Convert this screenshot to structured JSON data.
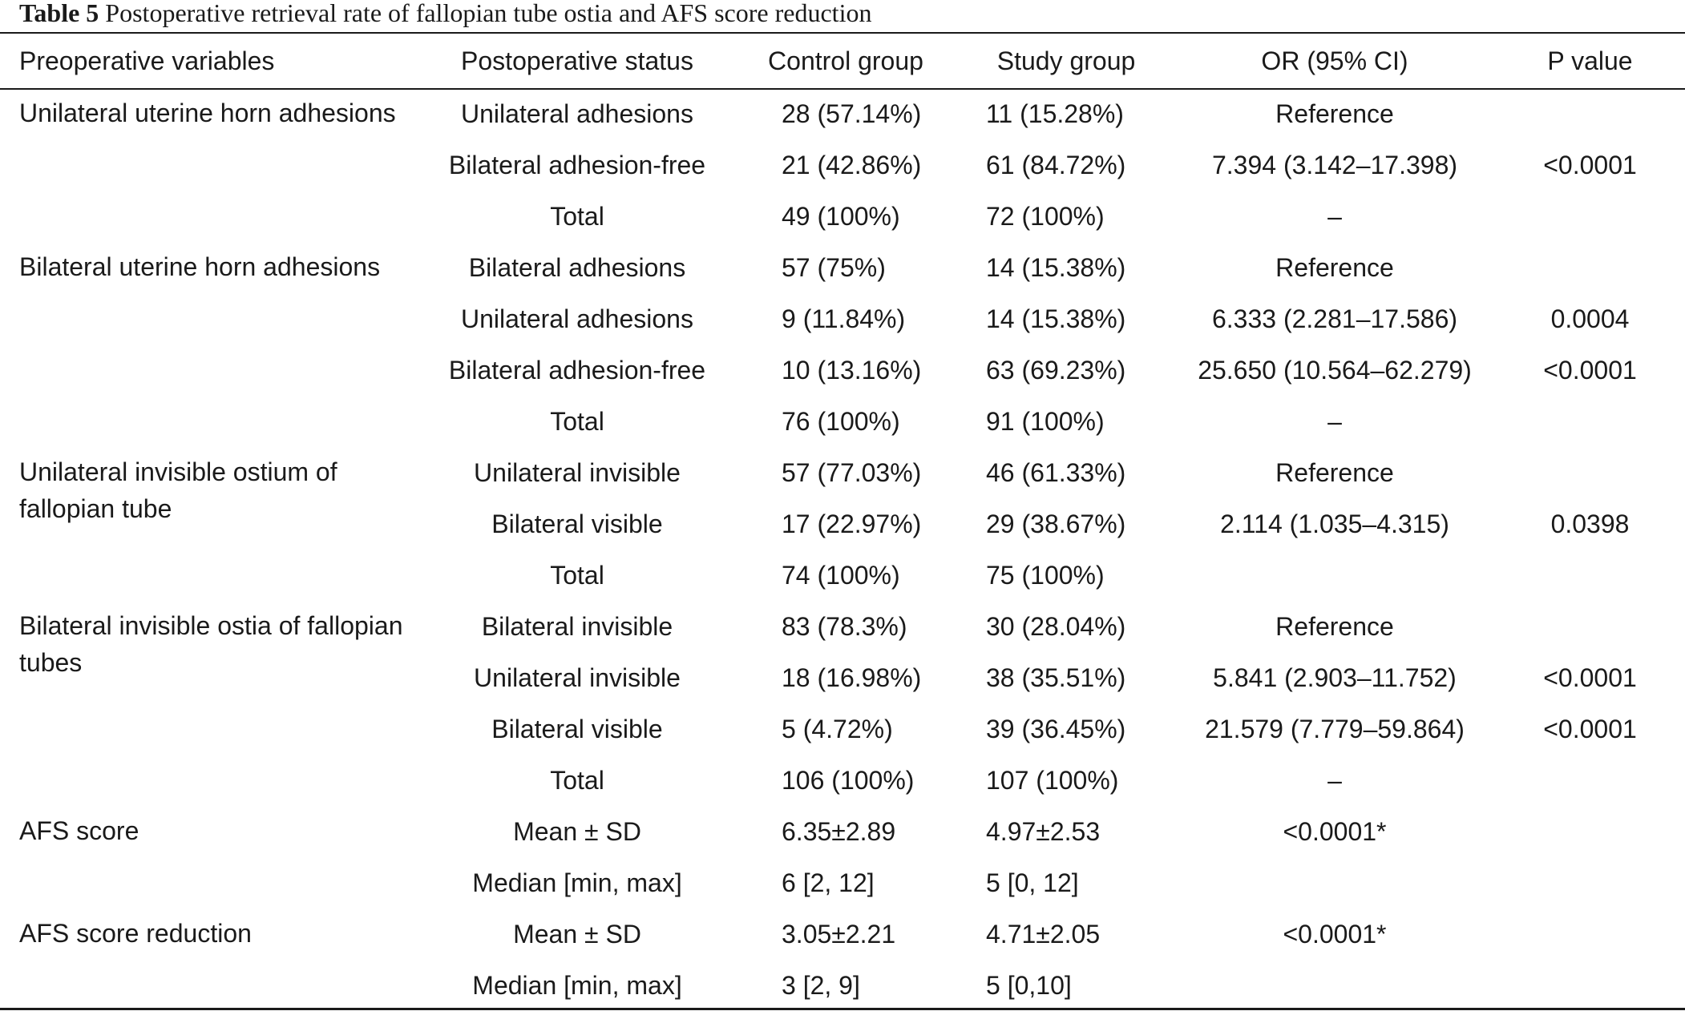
{
  "caption": {
    "label": "Table 5",
    "text": "Postoperative retrieval rate of fallopian tube ostia and AFS score reduction"
  },
  "columns": [
    "Preoperative variables",
    "Postoperative status",
    "Control group",
    "Study group",
    "OR (95% CI)",
    "P value"
  ],
  "groups": [
    {
      "variable": "Unilateral uterine horn adhesions",
      "rows": [
        {
          "status": "Unilateral adhesions",
          "control": "28 (57.14%)",
          "study": "11 (15.28%)",
          "or": "Reference",
          "p": ""
        },
        {
          "status": "Bilateral adhesion-free",
          "control": "21 (42.86%)",
          "study": "61 (84.72%)",
          "or": "7.394 (3.142–17.398)",
          "p": "<0.0001"
        },
        {
          "status": "Total",
          "control": "49 (100%)",
          "study": "72 (100%)",
          "or": "–",
          "p": ""
        }
      ]
    },
    {
      "variable": "Bilateral uterine horn adhesions",
      "rows": [
        {
          "status": "Bilateral adhesions",
          "control": "57 (75%)",
          "study": "14 (15.38%)",
          "or": "Reference",
          "p": ""
        },
        {
          "status": "Unilateral adhesions",
          "control": "9 (11.84%)",
          "study": "14 (15.38%)",
          "or": "6.333 (2.281–17.586)",
          "p": "0.0004"
        },
        {
          "status": "Bilateral adhesion-free",
          "control": "10 (13.16%)",
          "study": "63 (69.23%)",
          "or": "25.650 (10.564–62.279)",
          "p": "<0.0001"
        },
        {
          "status": "Total",
          "control": "76 (100%)",
          "study": "91 (100%)",
          "or": "–",
          "p": ""
        }
      ]
    },
    {
      "variable": "Unilateral invisible ostium of fallopian tube",
      "rows": [
        {
          "status": "Unilateral invisible",
          "control": "57 (77.03%)",
          "study": "46 (61.33%)",
          "or": "Reference",
          "p": ""
        },
        {
          "status": "Bilateral visible",
          "control": "17 (22.97%)",
          "study": "29 (38.67%)",
          "or": "2.114 (1.035–4.315)",
          "p": "0.0398"
        },
        {
          "status": "Total",
          "control": "74 (100%)",
          "study": "75 (100%)",
          "or": "",
          "p": ""
        }
      ]
    },
    {
      "variable": "Bilateral invisible ostia of fallopian tubes",
      "rows": [
        {
          "status": "Bilateral invisible",
          "control": "83 (78.3%)",
          "study": "30 (28.04%)",
          "or": "Reference",
          "p": ""
        },
        {
          "status": "Unilateral invisible",
          "control": "18 (16.98%)",
          "study": "38 (35.51%)",
          "or": "5.841 (2.903–11.752)",
          "p": "<0.0001"
        },
        {
          "status": "Bilateral visible",
          "control": "5 (4.72%)",
          "study": "39 (36.45%)",
          "or": "21.579 (7.779–59.864)",
          "p": "<0.0001"
        },
        {
          "status": "Total",
          "control": "106 (100%)",
          "study": "107 (100%)",
          "or": "–",
          "p": ""
        }
      ]
    },
    {
      "variable": "AFS score",
      "rows": [
        {
          "status": "Mean ± SD",
          "control": "6.35±2.89",
          "study": "4.97±2.53",
          "or": "<0.0001*",
          "p": ""
        },
        {
          "status": "Median [min, max]",
          "control": "6 [2, 12]",
          "study": "5 [0, 12]",
          "or": "",
          "p": ""
        }
      ]
    },
    {
      "variable": "AFS score reduction",
      "rows": [
        {
          "status": "Mean ± SD",
          "control": "3.05±2.21",
          "study": "4.71±2.05",
          "or": "<0.0001*",
          "p": ""
        },
        {
          "status": "Median [min, max]",
          "control": "3 [2, 9]",
          "study": "5 [0,10]",
          "or": "",
          "p": ""
        }
      ]
    }
  ]
}
